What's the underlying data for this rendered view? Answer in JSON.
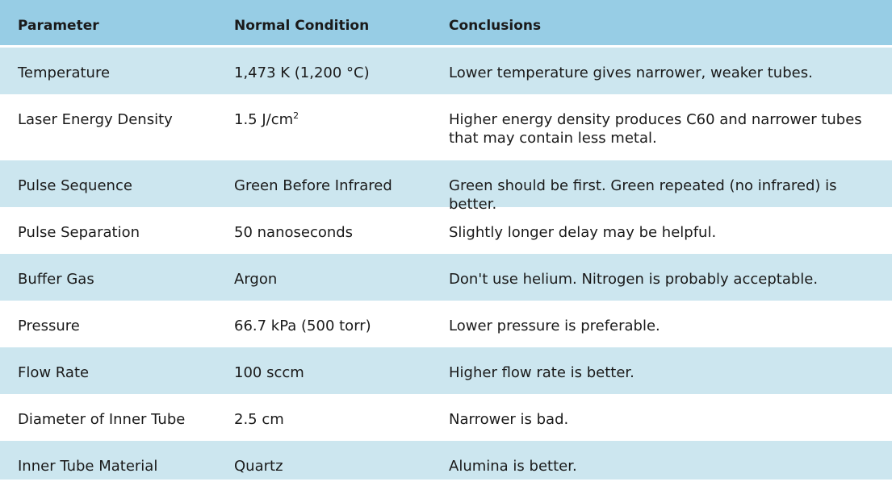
{
  "table": {
    "headers": [
      "Parameter",
      "Normal Condition",
      "Conclusions"
    ],
    "rows": [
      {
        "parameter": "Temperature",
        "condition": "1,473 K (1,200 °C)",
        "conclusion": "Lower temperature gives narrower, weaker tubes."
      },
      {
        "parameter": "Laser Energy Density",
        "condition": "1.5 J/cm",
        "condition_sup": "2",
        "conclusion": "Higher energy density produces C60 and narrower tubes that may contain less metal."
      },
      {
        "parameter": "Pulse Sequence",
        "condition": "Green Before Infrared",
        "conclusion": "Green should be first. Green repeated (no infrared) is better."
      },
      {
        "parameter": "Pulse Separation",
        "condition": "50 nanoseconds",
        "conclusion": "Slightly longer delay may be helpful."
      },
      {
        "parameter": "Buffer Gas",
        "condition": "Argon",
        "conclusion": "Don't use helium. Nitrogen is probably acceptable."
      },
      {
        "parameter": "Pressure",
        "condition": "66.7 kPa (500 torr)",
        "conclusion": "Lower pressure is preferable."
      },
      {
        "parameter": "Flow Rate",
        "condition": "100 sccm",
        "conclusion": "Higher flow rate is better."
      },
      {
        "parameter": "Diameter of Inner Tube",
        "condition": "2.5 cm",
        "conclusion": "Narrower is bad."
      },
      {
        "parameter": "Inner Tube Material",
        "condition": "Quartz",
        "conclusion": "Alumina is better."
      }
    ]
  },
  "colors": {
    "header_bg": "#97cde5",
    "shaded_row_bg": "#cce6ef",
    "plain_row_bg": "#ffffff",
    "text": "#1a1a1a"
  }
}
